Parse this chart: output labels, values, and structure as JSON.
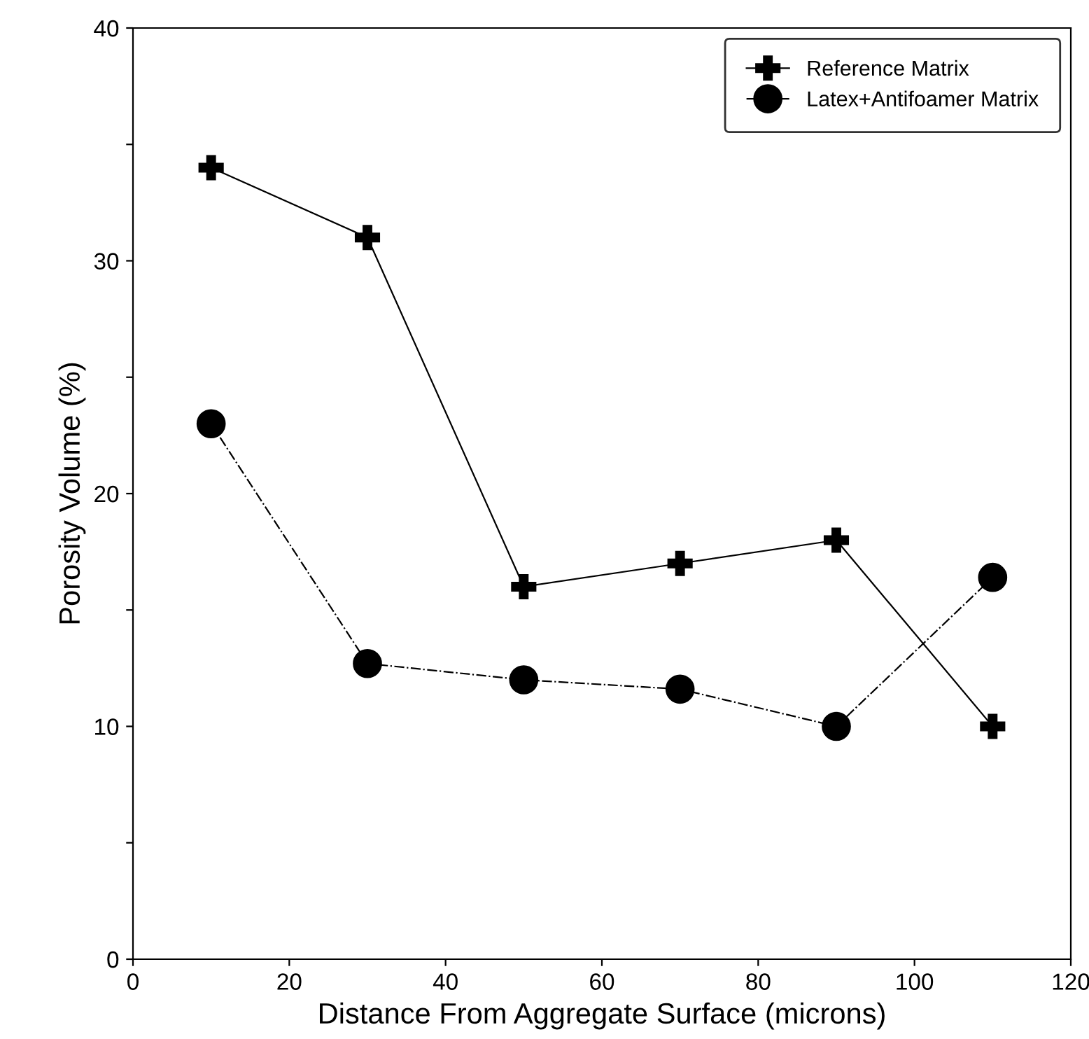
{
  "chart_data": {
    "type": "line",
    "xlabel": "Distance From Aggregate Surface (microns)",
    "ylabel": "Porosity Volume (%)",
    "x": [
      10,
      30,
      50,
      70,
      90,
      110
    ],
    "series": [
      {
        "name": "Reference Matrix",
        "color": "#000000",
        "values": [
          34,
          31,
          16,
          17,
          18,
          10
        ],
        "marker": "cross",
        "line_style": "solid"
      },
      {
        "name": "Latex+Antifoamer Matrix",
        "color": "#000000",
        "values": [
          23,
          12.7,
          12,
          11.6,
          10,
          16.4
        ],
        "marker": "circle",
        "line_style": "dashed"
      }
    ],
    "xlim": [
      0,
      120
    ],
    "xticks": [
      0,
      20,
      40,
      60,
      80,
      100,
      120
    ],
    "ylim": [
      0,
      40
    ],
    "yticks": [
      0,
      {
        "value": 5,
        "label": null
      },
      10,
      {
        "value": 15,
        "label": null
      },
      20,
      {
        "value": 25,
        "label": null
      },
      30,
      {
        "value": 35,
        "label": null
      },
      40
    ],
    "grid": false,
    "legend": "top right"
  }
}
